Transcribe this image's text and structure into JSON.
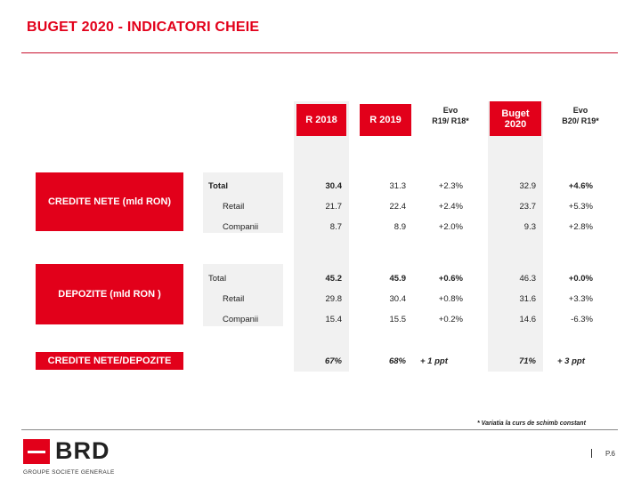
{
  "title": "BUGET 2020 - INDICATORI CHEIE",
  "headers": {
    "r2018": "R 2018",
    "r2019": "R 2019",
    "evo1_line1": "Evo",
    "evo1_line2": "R19/ R18*",
    "buget_line1": "Buget",
    "buget_line2": "2020",
    "evo2_line1": "Evo",
    "evo2_line2": "B20/ R19*"
  },
  "sections": {
    "credite": {
      "label": "CREDITE NETE (mld RON)",
      "rows": [
        {
          "name": "Total",
          "r2018": "30.4",
          "r2019": "31.3",
          "evo1": "+2.3%",
          "buget": "32.9",
          "evo2": "+4.6%"
        },
        {
          "name": "Retail",
          "r2018": "21.7",
          "r2019": "22.4",
          "evo1": "+2.4%",
          "buget": "23.7",
          "evo2": "+5.3%"
        },
        {
          "name": "Companii",
          "r2018": "8.7",
          "r2019": "8.9",
          "evo1": "+2.0%",
          "buget": "9.3",
          "evo2": "+2.8%"
        }
      ]
    },
    "depozite": {
      "label": "DEPOZITE (mld RON )",
      "rows": [
        {
          "name": "Total",
          "r2018": "45.2",
          "r2019": "45.9",
          "evo1": "+0.6%",
          "buget": "46.3",
          "evo2": "+0.0%"
        },
        {
          "name": "Retail",
          "r2018": "29.8",
          "r2019": "30.4",
          "evo1": "+0.8%",
          "buget": "31.6",
          "evo2": "+3.3%"
        },
        {
          "name": "Companii",
          "r2018": "15.4",
          "r2019": "15.5",
          "evo1": "+0.2%",
          "buget": "14.6",
          "evo2": "-6.3%"
        }
      ]
    },
    "ratio": {
      "label": "CREDITE NETE/DEPOZITE",
      "r2018": "67%",
      "r2019": "68%",
      "evo1": "+ 1 ppt",
      "buget": "71%",
      "evo2": "+ 3 ppt"
    }
  },
  "footnote": "* Variatia la curs de schimb constant",
  "logo": {
    "name": "BRD",
    "subtitle": "GROUPE SOCIETE GENERALE"
  },
  "page": "P.6",
  "colors": {
    "brand_red": "#e2001a"
  }
}
